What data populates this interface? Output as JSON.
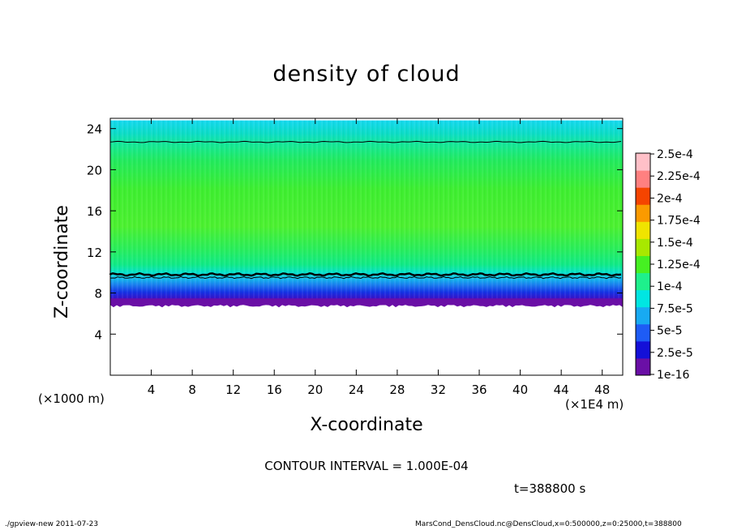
{
  "chart_data": {
    "type": "heatmap",
    "title": "density of cloud",
    "xlabel": "X-coordinate",
    "ylabel": "Z-coordinate",
    "x_unit_left": "(×1000 m)",
    "x_unit_right": "(×1E4 m)",
    "xlim": [
      0,
      50
    ],
    "ylim": [
      0,
      25
    ],
    "x_ticks": [
      4,
      8,
      12,
      16,
      20,
      24,
      28,
      32,
      36,
      40,
      44,
      48
    ],
    "y_ticks": [
      4,
      8,
      12,
      16,
      20,
      24
    ],
    "cloud_layer": {
      "bottom_z": 7.0,
      "lower_contour_z": 9.8,
      "upper_contour_z": 22.7,
      "top_z": 24.8
    },
    "colorbar": {
      "labels": [
        "1e-16",
        "2.5e-5",
        "5e-5",
        "7.5e-5",
        "1e-4",
        "1.25e-4",
        "1.5e-4",
        "1.75e-4",
        "2e-4",
        "2.25e-4",
        "2.5e-4"
      ],
      "colors": [
        "#6a0fa6",
        "#1410d8",
        "#1e5cf5",
        "#18aaf2",
        "#00e6e2",
        "#1ef08c",
        "#46f022",
        "#a8e800",
        "#f0e400",
        "#fb9a00",
        "#f54400",
        "#ff8080",
        "#ffc0c8"
      ]
    },
    "contour_interval_text": "CONTOUR INTERVAL = 1.000E-04",
    "time_text": "t=388800 s"
  },
  "footer": {
    "left": "./gpview-new   2011-07-23",
    "right": "MarsCond_DensCloud.nc@DensCloud,x=0:500000,z=0:25000,t=388800"
  }
}
